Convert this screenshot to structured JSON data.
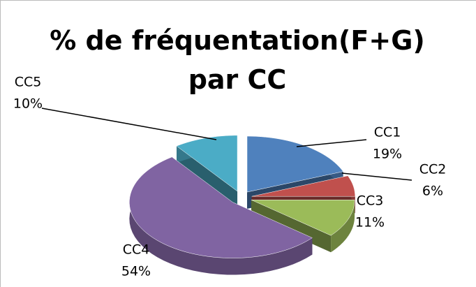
{
  "chart_data": {
    "type": "pie3d",
    "title": "% de fréquentation(F+G) par CC",
    "categories": [
      "CC1",
      "CC2",
      "CC3",
      "CC4",
      "CC5"
    ],
    "values": [
      19,
      6,
      11,
      54,
      10
    ],
    "value_labels": [
      "19%",
      "6%",
      "11%",
      "54%",
      "10%"
    ],
    "colors": [
      "#4f81bd",
      "#c0504d",
      "#9bbb59",
      "#8064a2",
      "#4bacc6"
    ]
  }
}
